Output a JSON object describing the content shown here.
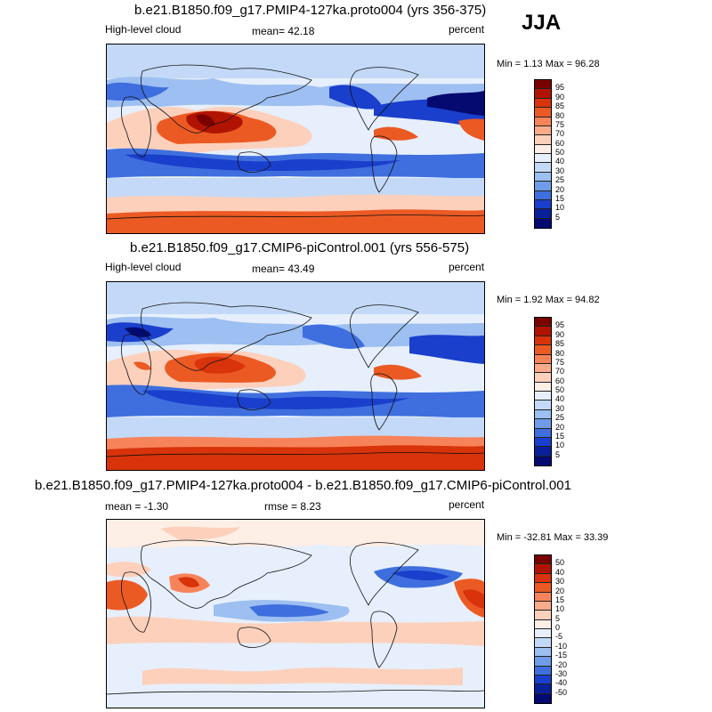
{
  "season": "JJA",
  "panels": [
    {
      "title": "b.e21.B1850.f09_g17.PMIP4-127ka.proto004 (yrs 356-375)",
      "left_label": "High-level cloud",
      "center_label": "mean=  42.18",
      "right_label": "percent",
      "minmax": "Min =   1.13 Max =  96.28"
    },
    {
      "title": "b.e21.B1850.f09_g17.CMIP6-piControl.001 (yrs 556-575)",
      "left_label": "High-level cloud",
      "center_label": "mean=  43.49",
      "right_label": "percent",
      "minmax": "Min =   1.92 Max =  94.82"
    },
    {
      "title": "b.e21.B1850.f09_g17.PMIP4-127ka.proto004 - b.e21.B1850.f09_g17.CMIP6-piControl.001",
      "left_label": "mean =  -1.30",
      "center_label": "rmse =   8.23",
      "right_label": "percent",
      "minmax": "Min = -32.81 Max =  33.39"
    }
  ],
  "colorbar_abs": {
    "levels": [
      "95",
      "90",
      "85",
      "80",
      "75",
      "70",
      "60",
      "50",
      "40",
      "30",
      "25",
      "20",
      "15",
      "10",
      "5"
    ],
    "colors": [
      "#7a0000",
      "#b01400",
      "#d8330a",
      "#ec5a24",
      "#f7835a",
      "#fbab8a",
      "#fdd0bc",
      "#fdeee6",
      "#e6effb",
      "#c3d9f7",
      "#9dbff1",
      "#6f9be8",
      "#3f6fde",
      "#1a3fcc",
      "#0a1f9a",
      "#050a70"
    ]
  },
  "colorbar_diff": {
    "levels": [
      "50",
      "40",
      "30",
      "20",
      "15",
      "10",
      "5",
      "0",
      "-5",
      "-10",
      "-15",
      "-20",
      "-30",
      "-40",
      "-50"
    ],
    "colors": [
      "#7a0000",
      "#b01400",
      "#d8330a",
      "#ec5a24",
      "#f7835a",
      "#fbab8a",
      "#fdd0bc",
      "#fdeee6",
      "#e6effb",
      "#c3d9f7",
      "#9dbff1",
      "#6f9be8",
      "#3f6fde",
      "#1a3fcc",
      "#0a1f9a",
      "#050a70"
    ]
  }
}
